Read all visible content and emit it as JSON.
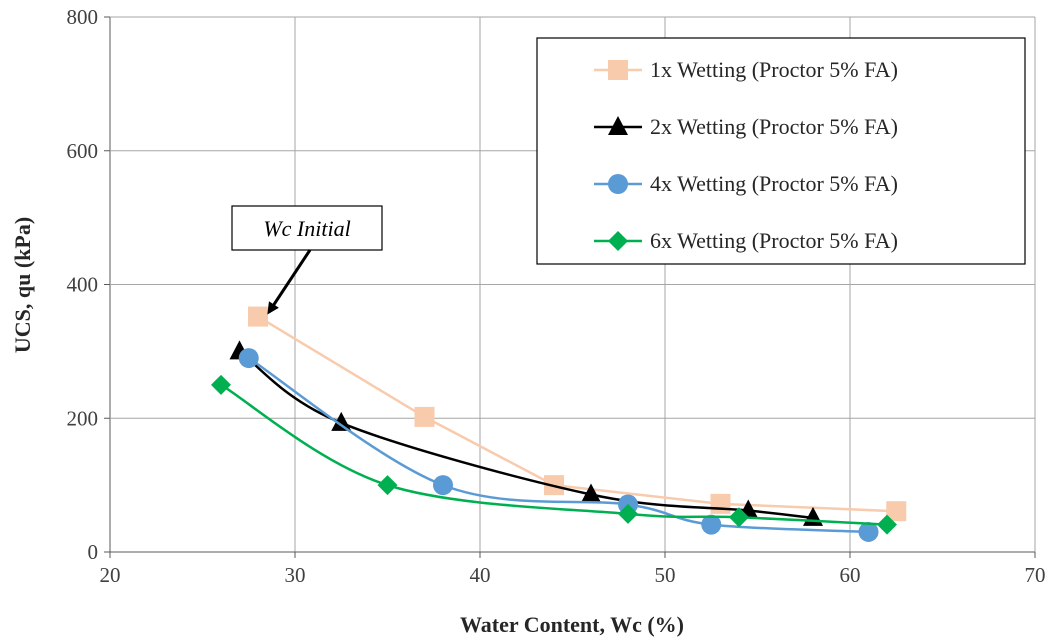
{
  "chart_data": {
    "type": "scatter",
    "title": "",
    "xlabel": "Water Content, Wc (%)",
    "ylabel": "UCS, qu (kPa)",
    "xlim": [
      20,
      70
    ],
    "ylim": [
      0,
      800
    ],
    "xticks": [
      20,
      30,
      40,
      50,
      60,
      70
    ],
    "yticks": [
      0,
      200,
      400,
      600,
      800
    ],
    "grid": true,
    "legend_position": "top-right",
    "series": [
      {
        "name": "1x Wetting (Proctor 5% FA)",
        "color": "#F8CBAD",
        "marker": "square",
        "line": "straight",
        "x": [
          28,
          37,
          44,
          53,
          62.5
        ],
        "y": [
          352,
          202,
          100,
          72,
          61
        ]
      },
      {
        "name": "2x Wetting (Proctor 5% FA)",
        "color": "#000000",
        "marker": "triangle",
        "line": "smooth",
        "x": [
          27,
          32.5,
          46,
          54.5,
          58
        ],
        "y": [
          300,
          193,
          86,
          62,
          51
        ]
      },
      {
        "name": "4x Wetting (Proctor 5% FA)",
        "color": "#5B9BD5",
        "marker": "circle",
        "line": "smooth",
        "x": [
          27.5,
          38,
          48,
          52.5,
          61
        ],
        "y": [
          290,
          100,
          71,
          41,
          30
        ]
      },
      {
        "name": "6x Wetting (Proctor 5% FA)",
        "color": "#00B050",
        "marker": "diamond",
        "line": "smooth",
        "x": [
          26,
          35,
          48,
          54,
          62
        ],
        "y": [
          250,
          100,
          57,
          52,
          41
        ]
      }
    ],
    "annotations": [
      {
        "text": "Wc Initial",
        "points_to": {
          "x": 28,
          "y": 352
        }
      }
    ]
  }
}
